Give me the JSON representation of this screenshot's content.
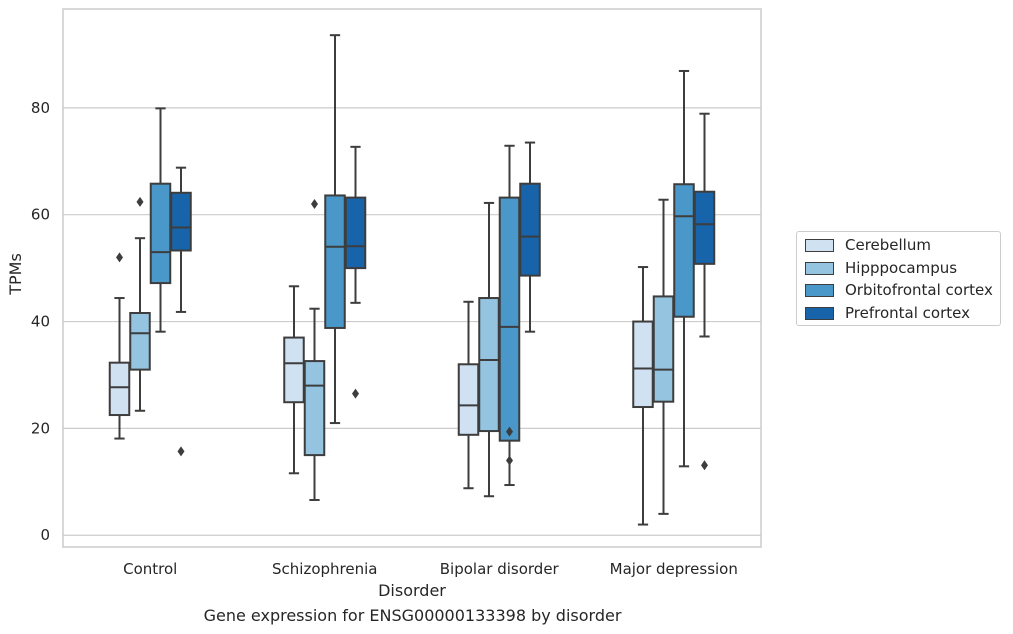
{
  "caption": "Gene expression for ENSG00000133398 by disorder",
  "chart_data": {
    "type": "box",
    "title": "",
    "xlabel": "Disorder",
    "ylabel": "TPMs",
    "ylim": [
      -2.2,
      98.5
    ],
    "yticks": [
      0,
      20,
      40,
      60,
      80
    ],
    "grid": true,
    "legend_position": "right",
    "categories": [
      "Control",
      "Schizophrenia",
      "Bipolar disorder",
      "Major depression"
    ],
    "series": [
      {
        "name": "Cerebellum",
        "color": "#d0e1f2",
        "boxes": [
          {
            "whislo": 18.1,
            "q1": 22.5,
            "med": 27.7,
            "q3": 32.3,
            "whishi": 44.4,
            "fliers": [
              52.0
            ]
          },
          {
            "whislo": 11.6,
            "q1": 24.9,
            "med": 32.2,
            "q3": 37.0,
            "whishi": 46.6,
            "fliers": []
          },
          {
            "whislo": 8.8,
            "q1": 18.8,
            "med": 24.3,
            "q3": 32.0,
            "whishi": 43.7,
            "fliers": []
          },
          {
            "whislo": 2.0,
            "q1": 24.0,
            "med": 31.2,
            "q3": 40.0,
            "whishi": 50.2,
            "fliers": []
          }
        ]
      },
      {
        "name": "Hipppocampus",
        "color": "#94c4df",
        "boxes": [
          {
            "whislo": 23.3,
            "q1": 31.0,
            "med": 37.8,
            "q3": 41.6,
            "whishi": 55.6,
            "fliers": [
              62.4
            ]
          },
          {
            "whislo": 6.6,
            "q1": 15.0,
            "med": 28.0,
            "q3": 32.6,
            "whishi": 42.4,
            "fliers": [
              62.0
            ]
          },
          {
            "whislo": 7.3,
            "q1": 19.5,
            "med": 32.8,
            "q3": 44.4,
            "whishi": 62.2,
            "fliers": []
          },
          {
            "whislo": 4.0,
            "q1": 25.0,
            "med": 31.0,
            "q3": 44.7,
            "whishi": 62.8,
            "fliers": []
          }
        ]
      },
      {
        "name": "Orbitofrontal cortex",
        "color": "#4a98c9",
        "boxes": [
          {
            "whislo": 38.1,
            "q1": 47.2,
            "med": 53.0,
            "q3": 65.8,
            "whishi": 79.9,
            "fliers": []
          },
          {
            "whislo": 21.0,
            "q1": 38.8,
            "med": 54.0,
            "q3": 63.6,
            "whishi": 93.6,
            "fliers": []
          },
          {
            "whislo": 9.4,
            "q1": 17.7,
            "med": 39.0,
            "q3": 63.2,
            "whishi": 72.9,
            "fliers": [
              19.4,
              14.0
            ]
          },
          {
            "whislo": 12.9,
            "q1": 40.9,
            "med": 59.7,
            "q3": 65.7,
            "whishi": 86.9,
            "fliers": []
          }
        ]
      },
      {
        "name": "Prefrontal cortex",
        "color": "#1764ab",
        "boxes": [
          {
            "whislo": 41.8,
            "q1": 53.3,
            "med": 57.6,
            "q3": 64.1,
            "whishi": 68.8,
            "fliers": [
              15.7
            ]
          },
          {
            "whislo": 43.5,
            "q1": 50.0,
            "med": 54.1,
            "q3": 63.2,
            "whishi": 72.7,
            "fliers": [
              26.5
            ]
          },
          {
            "whislo": 38.1,
            "q1": 48.6,
            "med": 55.9,
            "q3": 65.8,
            "whishi": 73.5,
            "fliers": []
          },
          {
            "whislo": 37.2,
            "q1": 50.8,
            "med": 58.2,
            "q3": 64.3,
            "whishi": 78.9,
            "fliers": [
              13.1
            ]
          }
        ]
      }
    ]
  }
}
